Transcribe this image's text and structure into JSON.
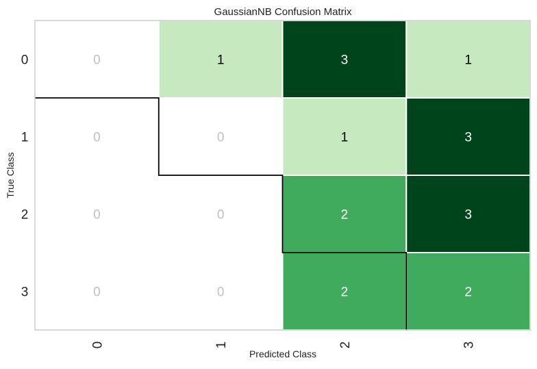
{
  "chart_data": {
    "type": "heatmap",
    "title": "GaussianNB Confusion Matrix",
    "xlabel": "Predicted Class",
    "ylabel": "True Class",
    "x_categories": [
      "0",
      "1",
      "2",
      "3"
    ],
    "y_categories": [
      "0",
      "1",
      "2",
      "3"
    ],
    "values": [
      [
        0,
        1,
        3,
        1
      ],
      [
        0,
        0,
        1,
        3
      ],
      [
        0,
        0,
        2,
        3
      ],
      [
        0,
        0,
        2,
        2
      ]
    ],
    "colormap": {
      "zero": "#ffffff",
      "1": "#c7e9c0",
      "2": "#41ab5d",
      "3": "#00441b"
    },
    "text_colors": {
      "zero": "#c0c0c0",
      "light": "#000000",
      "dark": "#ffffff"
    },
    "diagonal_outline": true,
    "grid": false
  }
}
